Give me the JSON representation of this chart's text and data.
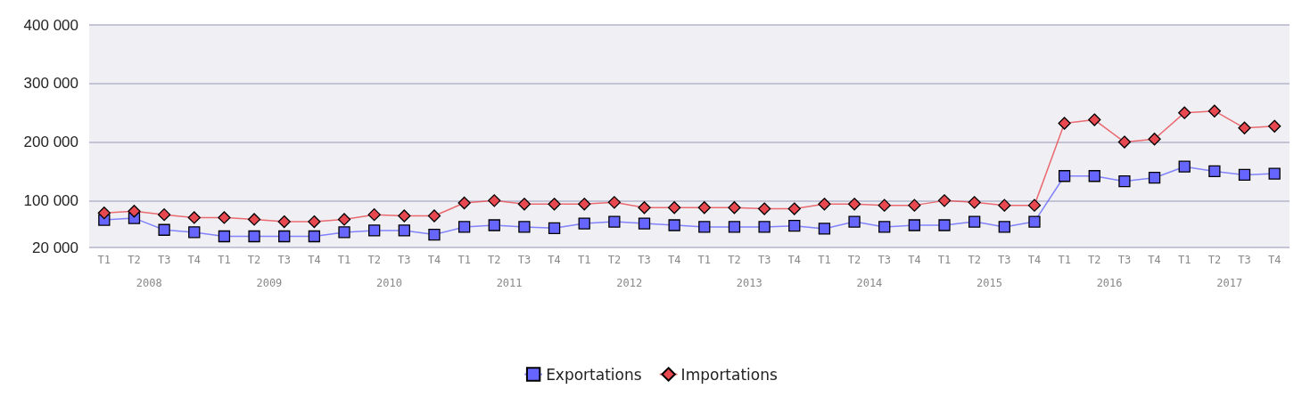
{
  "chart_data": {
    "type": "line",
    "categories": [
      "T1",
      "T2",
      "T3",
      "T4",
      "T1",
      "T2",
      "T3",
      "T4",
      "T1",
      "T2",
      "T3",
      "T4",
      "T1",
      "T2",
      "T3",
      "T4",
      "T1",
      "T2",
      "T3",
      "T4",
      "T1",
      "T2",
      "T3",
      "T4",
      "T1",
      "T2",
      "T3",
      "T4",
      "T1",
      "T2",
      "T3",
      "T4",
      "T1",
      "T2",
      "T3",
      "T4",
      "T1",
      "T2",
      "T3",
      "T4"
    ],
    "annotations": [
      "2008",
      "2009",
      "2010",
      "2011",
      "2012",
      "2013",
      "2014",
      "2015",
      "2016",
      "2017"
    ],
    "series": [
      {
        "name": "Exportations",
        "color": "#6666ff",
        "marker": "square",
        "values": [
          67000,
          70000,
          50000,
          46000,
          39000,
          39000,
          39000,
          39000,
          46000,
          49000,
          49000,
          42000,
          55000,
          58000,
          55000,
          53000,
          61000,
          64000,
          61000,
          58000,
          55000,
          55000,
          55000,
          57000,
          52000,
          64000,
          55000,
          58000,
          58000,
          64000,
          55000,
          64000,
          142000,
          142000,
          133000,
          139000,
          158000,
          150000,
          144000,
          146000
        ]
      },
      {
        "name": "Importations",
        "color": "#e8484f",
        "marker": "diamond",
        "values": [
          79000,
          82000,
          76000,
          71000,
          71000,
          68000,
          64000,
          64000,
          68000,
          76000,
          74000,
          74000,
          96000,
          100000,
          94000,
          94000,
          94000,
          97000,
          88000,
          88000,
          88000,
          88000,
          86000,
          86000,
          94000,
          94000,
          92000,
          92000,
          100000,
          97000,
          92000,
          92000,
          232000,
          238000,
          200000,
          205000,
          250000,
          253000,
          224000,
          227000
        ]
      }
    ],
    "ylim": [
      20000,
      400000
    ],
    "yticks": [
      20000,
      100000,
      200000,
      300000,
      400000
    ],
    "grid": "y",
    "legend": "bottom",
    "line_style": "solid"
  }
}
